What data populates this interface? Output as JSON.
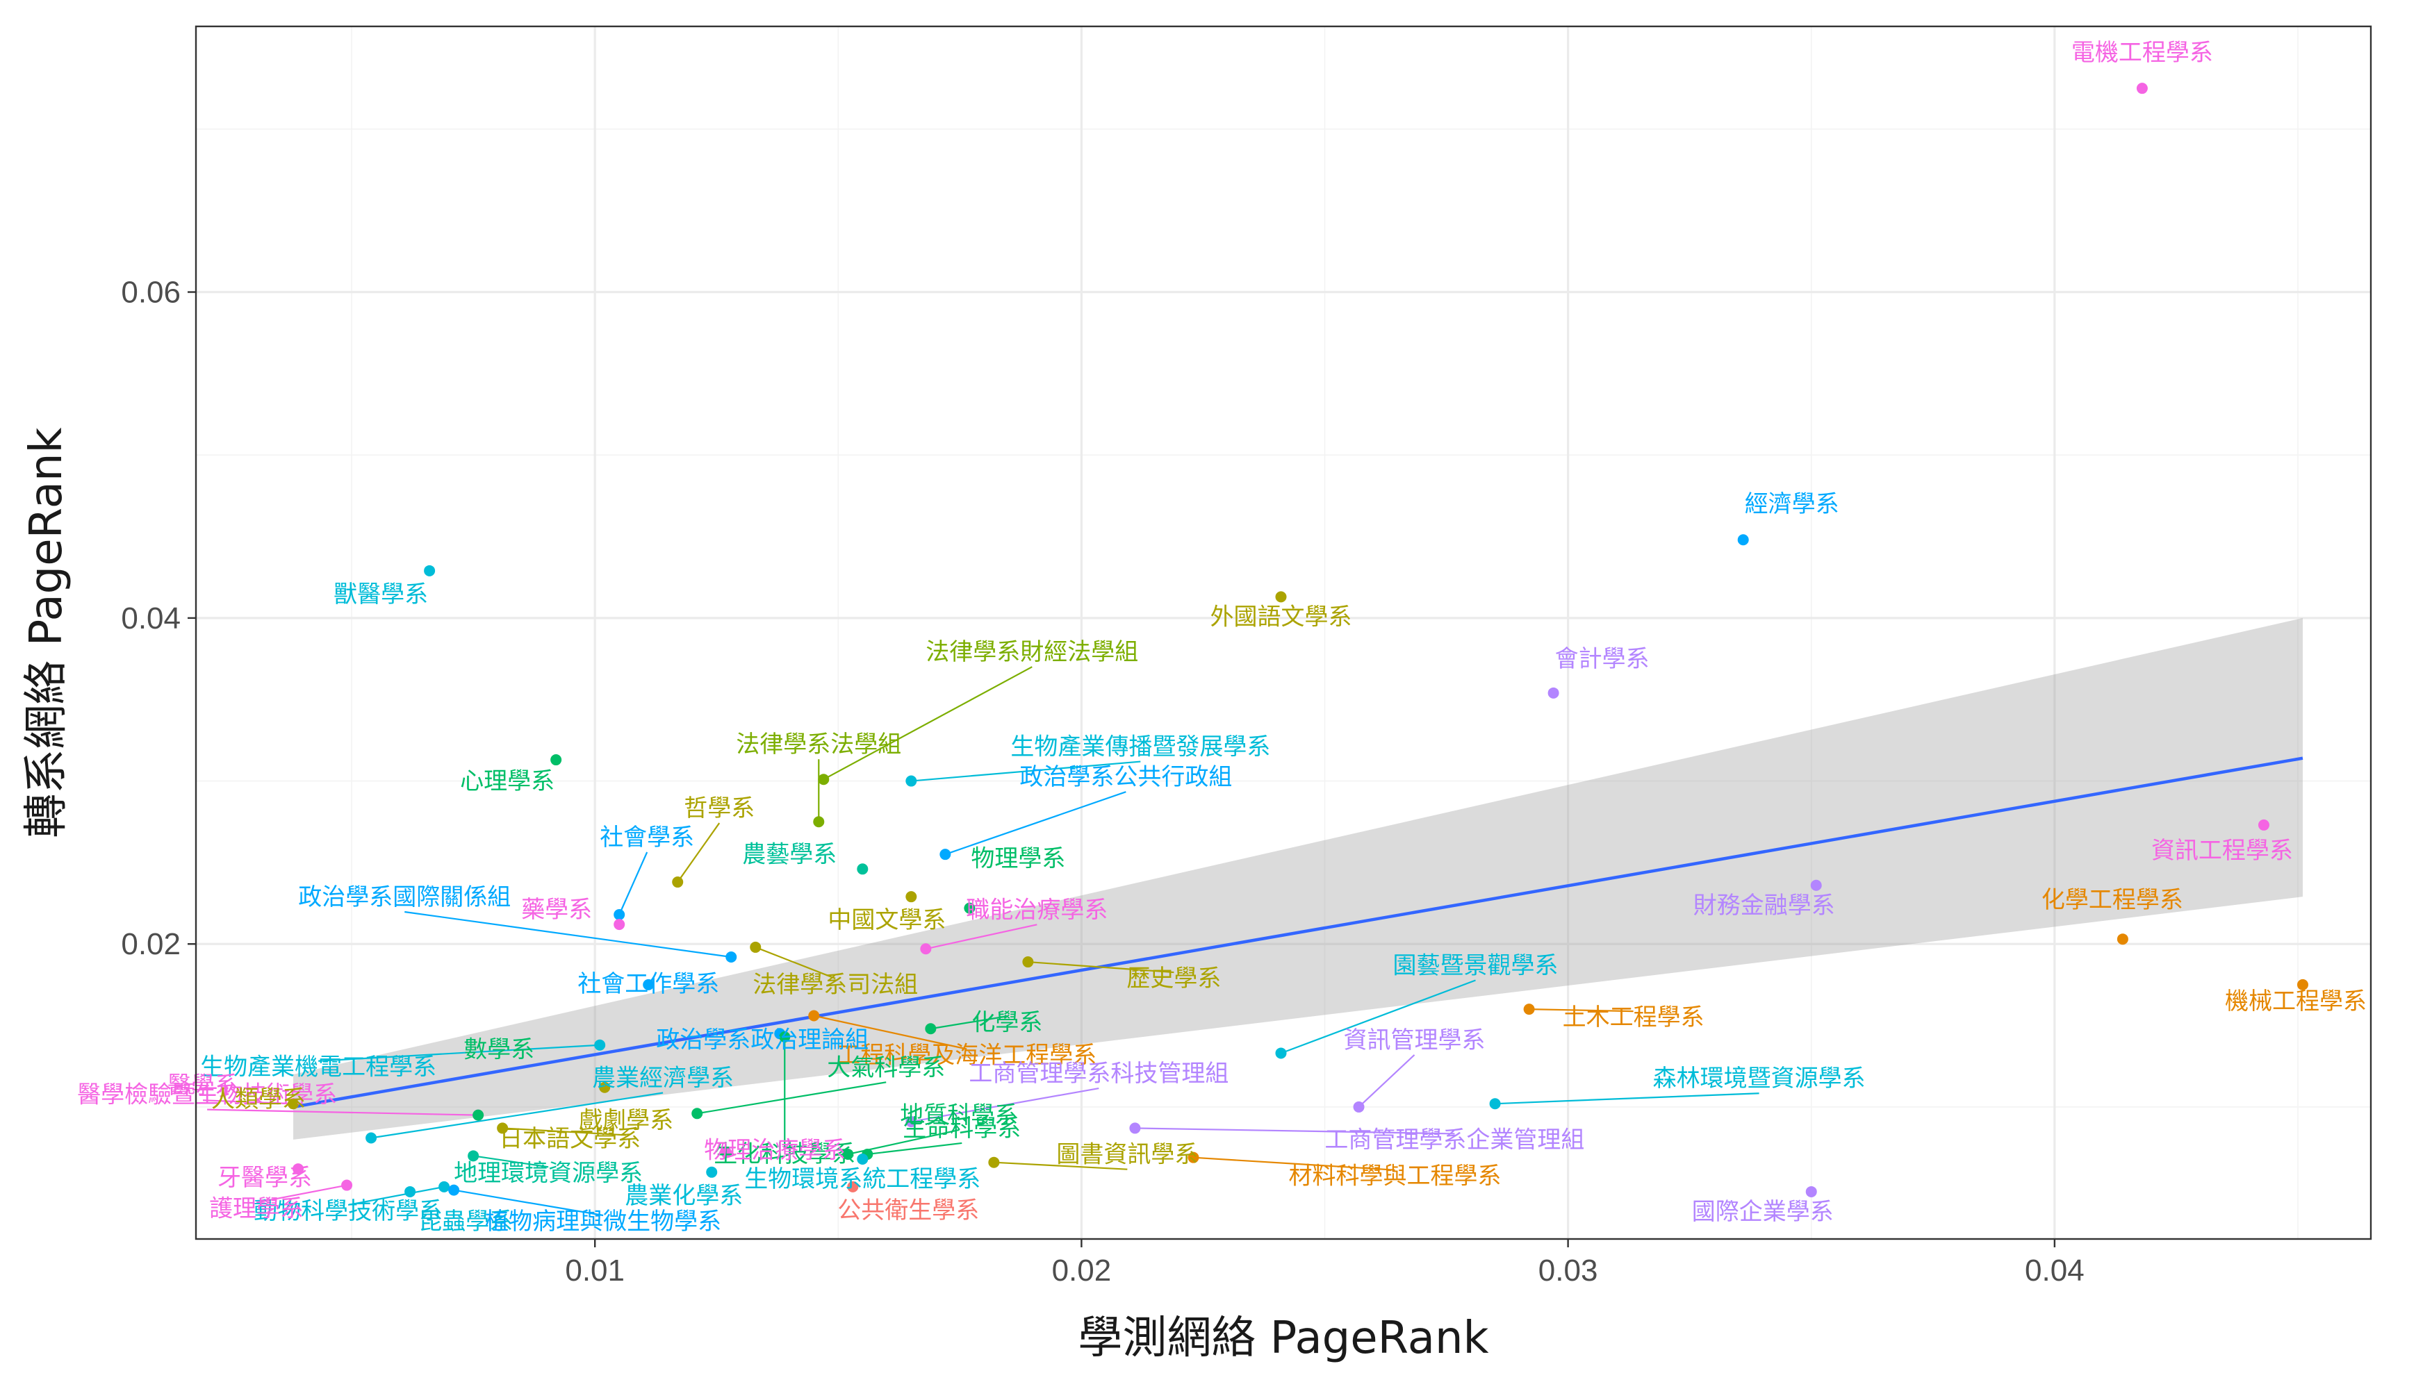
{
  "chart_data": {
    "type": "scatter",
    "xlabel": "學測網絡 PageRank",
    "ylabel": "轉系網絡 PageRank",
    "xlim": [
      0.0018,
      0.0465
    ],
    "ylim": [
      0.0019,
      0.0763
    ],
    "x_ticks": [
      0.01,
      0.02,
      0.03,
      0.04
    ],
    "x_tick_labels": [
      "0.01",
      "0.02",
      "0.03",
      "0.04"
    ],
    "y_ticks": [
      0.02,
      0.04,
      0.06
    ],
    "y_tick_labels": [
      "0.02",
      "0.04",
      "0.06"
    ],
    "grid": true,
    "legend": "none",
    "fit": {
      "method": "linear",
      "x": [
        0.0038,
        0.0451
      ],
      "y": [
        0.01,
        0.0314
      ],
      "ci_lower": [
        0.008,
        0.0229
      ],
      "ci_upper": [
        0.012,
        0.04
      ],
      "line_color": "#3366ff",
      "band_color": "#999999"
    },
    "points": [
      {
        "label": "電機工程學系",
        "x": 0.0418,
        "y": 0.0725,
        "color": "#F564E3"
      },
      {
        "label": "經濟學系",
        "x": 0.0336,
        "y": 0.0448,
        "color": "#00A9FF"
      },
      {
        "label": "獸醫學系",
        "x": 0.0066,
        "y": 0.0429,
        "color": "#00BCD8"
      },
      {
        "label": "外國語文學系",
        "x": 0.0241,
        "y": 0.0413,
        "color": "#ABA300"
      },
      {
        "label": "會計學系",
        "x": 0.0297,
        "y": 0.0354,
        "color": "#B385FF"
      },
      {
        "label": "法律學系財經法學組",
        "x": 0.0147,
        "y": 0.0301,
        "color": "#7CAE00"
      },
      {
        "label": "心理學系",
        "x": 0.0092,
        "y": 0.0313,
        "color": "#00BE67"
      },
      {
        "label": "生物產業傳播暨發展學系",
        "x": 0.0165,
        "y": 0.03,
        "color": "#00BCD8"
      },
      {
        "label": "法律學系法學組",
        "x": 0.0146,
        "y": 0.0275,
        "color": "#7CAE00"
      },
      {
        "label": "資訊工程學系",
        "x": 0.0443,
        "y": 0.0273,
        "color": "#F564E3"
      },
      {
        "label": "哲學系",
        "x": 0.0117,
        "y": 0.0238,
        "color": "#ABA300"
      },
      {
        "label": "政治學系公共行政組",
        "x": 0.0172,
        "y": 0.0255,
        "color": "#00A9FF"
      },
      {
        "label": "農藝學系",
        "x": 0.0155,
        "y": 0.0246,
        "color": "#00C19A"
      },
      {
        "label": "社會學系",
        "x": 0.0105,
        "y": 0.0218,
        "color": "#00A9FF"
      },
      {
        "label": "物理學系",
        "x": 0.0177,
        "y": 0.0222,
        "color": "#00BE67"
      },
      {
        "label": "財務金融學系",
        "x": 0.0351,
        "y": 0.0236,
        "color": "#B385FF"
      },
      {
        "label": "中國文學系",
        "x": 0.0165,
        "y": 0.0229,
        "color": "#ABA300"
      },
      {
        "label": "藥學系",
        "x": 0.0105,
        "y": 0.0212,
        "color": "#F564E3"
      },
      {
        "label": "化學工程學系",
        "x": 0.0414,
        "y": 0.0203,
        "color": "#E58700"
      },
      {
        "label": "法律學系司法組",
        "x": 0.0133,
        "y": 0.0198,
        "color": "#ABA300"
      },
      {
        "label": "職能治療學系",
        "x": 0.0168,
        "y": 0.0197,
        "color": "#F564E3"
      },
      {
        "label": "政治學系國際關係組",
        "x": 0.0128,
        "y": 0.0192,
        "color": "#00A9FF"
      },
      {
        "label": "歷史學系",
        "x": 0.0189,
        "y": 0.0189,
        "color": "#ABA300"
      },
      {
        "label": "社會工作學系",
        "x": 0.0111,
        "y": 0.0175,
        "color": "#00A9FF"
      },
      {
        "label": "機械工程學系",
        "x": 0.0451,
        "y": 0.0175,
        "color": "#E58700"
      },
      {
        "label": "醫學檢驗暨生物技術學系",
        "x": 0.0076,
        "y": 0.0095,
        "color": "#F564E3"
      },
      {
        "label": "工程科學及海洋工程學系",
        "x": 0.0145,
        "y": 0.0156,
        "color": "#E58700"
      },
      {
        "label": "園藝暨景觀學系",
        "x": 0.0241,
        "y": 0.0133,
        "color": "#00BCD8"
      },
      {
        "label": "土木工程學系",
        "x": 0.0292,
        "y": 0.016,
        "color": "#E58700"
      },
      {
        "label": "生物產業機電工程學系",
        "x": 0.0101,
        "y": 0.0138,
        "color": "#00BCD8"
      },
      {
        "label": "政治學系政治理論組",
        "x": 0.0138,
        "y": 0.0145,
        "color": "#00A9FF"
      },
      {
        "label": "醫學系",
        "x": 0.0038,
        "y": 0.0102,
        "color": "#F564E3"
      },
      {
        "label": "生化科技學系",
        "x": 0.0139,
        "y": 0.0143,
        "color": "#00BE67"
      },
      {
        "label": "化學系",
        "x": 0.0169,
        "y": 0.0148,
        "color": "#00BE67"
      },
      {
        "label": "數學系",
        "x": 0.0076,
        "y": 0.0095,
        "color": "#00BE67"
      },
      {
        "label": "日本語文學系",
        "x": 0.0102,
        "y": 0.0112,
        "color": "#ABA300"
      },
      {
        "label": "大氣科學系",
        "x": 0.0121,
        "y": 0.0096,
        "color": "#00BE67"
      },
      {
        "label": "農業經濟學系",
        "x": 0.0054,
        "y": 0.0081,
        "color": "#00BCD8"
      },
      {
        "label": "資訊管理學系",
        "x": 0.0257,
        "y": 0.01,
        "color": "#B385FF"
      },
      {
        "label": "森林環境暨資源學系",
        "x": 0.0285,
        "y": 0.0102,
        "color": "#00BCD8"
      },
      {
        "label": "工商管理學系科技管理組",
        "x": 0.0165,
        "y": 0.0091,
        "color": "#B385FF"
      },
      {
        "label": "戲劇學系",
        "x": 0.0081,
        "y": 0.0087,
        "color": "#ABA300"
      },
      {
        "label": "人類學系",
        "x": 0.0038,
        "y": 0.0102,
        "color": "#ABA300"
      },
      {
        "label": "地質科學系",
        "x": 0.0152,
        "y": 0.0071,
        "color": "#00BE67"
      },
      {
        "label": "工商管理學系企業管理組",
        "x": 0.0211,
        "y": 0.0087,
        "color": "#B385FF"
      },
      {
        "label": "生命科學系",
        "x": 0.0156,
        "y": 0.0071,
        "color": "#00BE67"
      },
      {
        "label": "動物科學技術學系",
        "x": 0.0069,
        "y": 0.0051,
        "color": "#00BCD8"
      },
      {
        "label": "地理環境資源學系",
        "x": 0.0075,
        "y": 0.007,
        "color": "#00C19A"
      },
      {
        "label": "圖書資訊學系",
        "x": 0.0182,
        "y": 0.0066,
        "color": "#ABA300"
      },
      {
        "label": "材料科學與工程學系",
        "x": 0.0223,
        "y": 0.0069,
        "color": "#E58700"
      },
      {
        "label": "物理治療學系",
        "x": 0.0127,
        "y": 0.0072,
        "color": "#F564E3"
      },
      {
        "label": "牙醫學系",
        "x": 0.0039,
        "y": 0.0062,
        "color": "#F564E3"
      },
      {
        "label": "國際企業學系",
        "x": 0.035,
        "y": 0.0048,
        "color": "#B385FF"
      },
      {
        "label": "護理學系",
        "x": 0.0049,
        "y": 0.0052,
        "color": "#F564E3"
      },
      {
        "label": "昆蟲學系",
        "x": 0.0062,
        "y": 0.0048,
        "color": "#00BCD8"
      },
      {
        "label": "植物病理與微生物學系",
        "x": 0.0071,
        "y": 0.0049,
        "color": "#00A9FF"
      },
      {
        "label": "農業化學系",
        "x": 0.0124,
        "y": 0.006,
        "color": "#00BCD8"
      },
      {
        "label": "公共衛生學系",
        "x": 0.0153,
        "y": 0.0051,
        "color": "#F8766D"
      },
      {
        "label": "生物環境系統工程學系",
        "x": 0.0155,
        "y": 0.0068,
        "color": "#00BCD8"
      }
    ]
  }
}
